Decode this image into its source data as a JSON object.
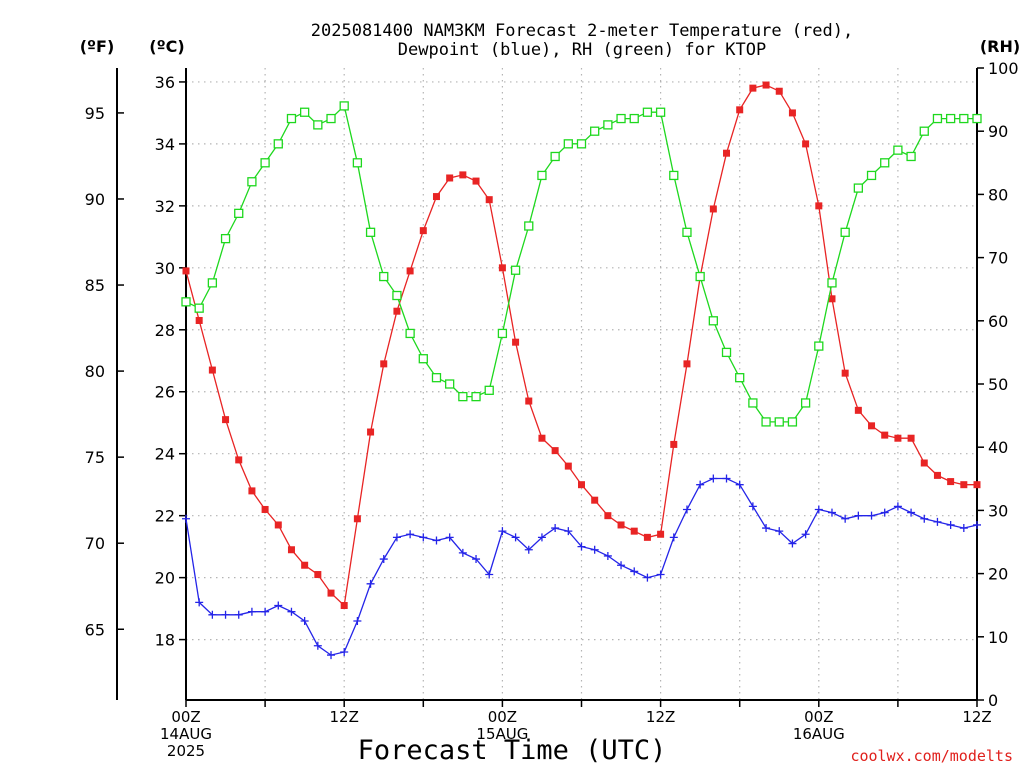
{
  "chart_data": {
    "type": "line",
    "title_lines": [
      "2025081400 NAM3KM Forecast 2-meter Temperature (red),",
      "Dewpoint (blue), RH (green) for KTOP"
    ],
    "xlabel": "Forecast Time (UTC)",
    "credit": "coolwx.com/modelts",
    "units": {
      "f": "(ºF)",
      "c": "(ºC)",
      "rh": "(RH)"
    },
    "x_hours_range": [
      0,
      60
    ],
    "x_ticks": [
      {
        "hour": 0,
        "lines": [
          "00Z",
          "14AUG",
          "2025"
        ]
      },
      {
        "hour": 12,
        "lines": [
          "12Z"
        ]
      },
      {
        "hour": 24,
        "lines": [
          "00Z",
          "15AUG"
        ]
      },
      {
        "hour": 36,
        "lines": [
          "12Z"
        ]
      },
      {
        "hour": 48,
        "lines": [
          "00Z",
          "16AUG"
        ]
      },
      {
        "hour": 60,
        "lines": [
          "12Z"
        ]
      }
    ],
    "y_c": {
      "range": [
        16.05,
        36.45
      ],
      "ticks": [
        18,
        20,
        22,
        24,
        26,
        28,
        30,
        32,
        34,
        36
      ],
      "labels": [
        "18",
        "20",
        "22",
        "24",
        "26",
        "28",
        "30",
        "32",
        "34",
        "36"
      ]
    },
    "y_f": {
      "ticks": [
        65,
        70,
        75,
        80,
        85,
        90,
        95
      ],
      "labels": [
        "65",
        "70",
        "75",
        "80",
        "85",
        "90",
        "95"
      ]
    },
    "y_rh": {
      "range": [
        0,
        100
      ],
      "ticks": [
        0,
        10,
        20,
        30,
        40,
        50,
        60,
        70,
        80,
        90,
        100
      ],
      "labels": [
        "0",
        "10",
        "20",
        "30",
        "40",
        "50",
        "60",
        "70",
        "80",
        "90",
        "100"
      ]
    },
    "grid": true,
    "series": [
      {
        "name": "Temperature (red)",
        "axis": "c",
        "color": "#e82424",
        "marker": "filled-square",
        "values": [
          29.9,
          28.3,
          26.7,
          25.1,
          23.8,
          22.8,
          22.2,
          21.7,
          20.9,
          20.4,
          20.1,
          19.5,
          19.1,
          21.9,
          24.7,
          26.9,
          28.6,
          29.9,
          31.2,
          32.3,
          32.9,
          33.0,
          32.8,
          32.2,
          30.0,
          27.6,
          25.7,
          24.5,
          24.1,
          23.6,
          23.0,
          22.5,
          22.0,
          21.7,
          21.5,
          21.3,
          21.4,
          24.3,
          26.9,
          29.7,
          31.9,
          33.7,
          35.1,
          35.8,
          35.9,
          35.7,
          35.0,
          34.0,
          32.0,
          29.0,
          26.6,
          25.4,
          24.9,
          24.6,
          24.5,
          24.5,
          23.7,
          23.3,
          23.1,
          23.0,
          23.0
        ]
      },
      {
        "name": "Dewpoint (blue)",
        "axis": "c",
        "color": "#2424e8",
        "marker": "plus",
        "values": [
          21.9,
          19.2,
          18.8,
          18.8,
          18.8,
          18.9,
          18.9,
          19.1,
          18.9,
          18.6,
          17.8,
          17.5,
          17.6,
          18.6,
          19.8,
          20.6,
          21.3,
          21.4,
          21.3,
          21.2,
          21.3,
          20.8,
          20.6,
          20.1,
          21.5,
          21.3,
          20.9,
          21.3,
          21.6,
          21.5,
          21.0,
          20.9,
          20.7,
          20.4,
          20.2,
          20.0,
          20.1,
          21.3,
          22.2,
          23.0,
          23.2,
          23.2,
          23.0,
          22.3,
          21.6,
          21.5,
          21.1,
          21.4,
          22.2,
          22.1,
          21.9,
          22.0,
          22.0,
          22.1,
          22.3,
          22.1,
          21.9,
          21.8,
          21.7,
          21.6,
          21.7
        ]
      },
      {
        "name": "RH (green)",
        "axis": "rh",
        "color": "#1ed81e",
        "marker": "open-square",
        "values": [
          63,
          62,
          66,
          73,
          77,
          82,
          85,
          88,
          92,
          93,
          91,
          92,
          94,
          85,
          74,
          67,
          64,
          58,
          54,
          51,
          50,
          48,
          48,
          49,
          58,
          68,
          75,
          83,
          86,
          88,
          88,
          90,
          91,
          92,
          92,
          93,
          93,
          83,
          74,
          67,
          60,
          55,
          51,
          47,
          44,
          44,
          44,
          47,
          56,
          66,
          74,
          81,
          83,
          85,
          87,
          86,
          90,
          92,
          92,
          92,
          92
        ]
      }
    ]
  }
}
